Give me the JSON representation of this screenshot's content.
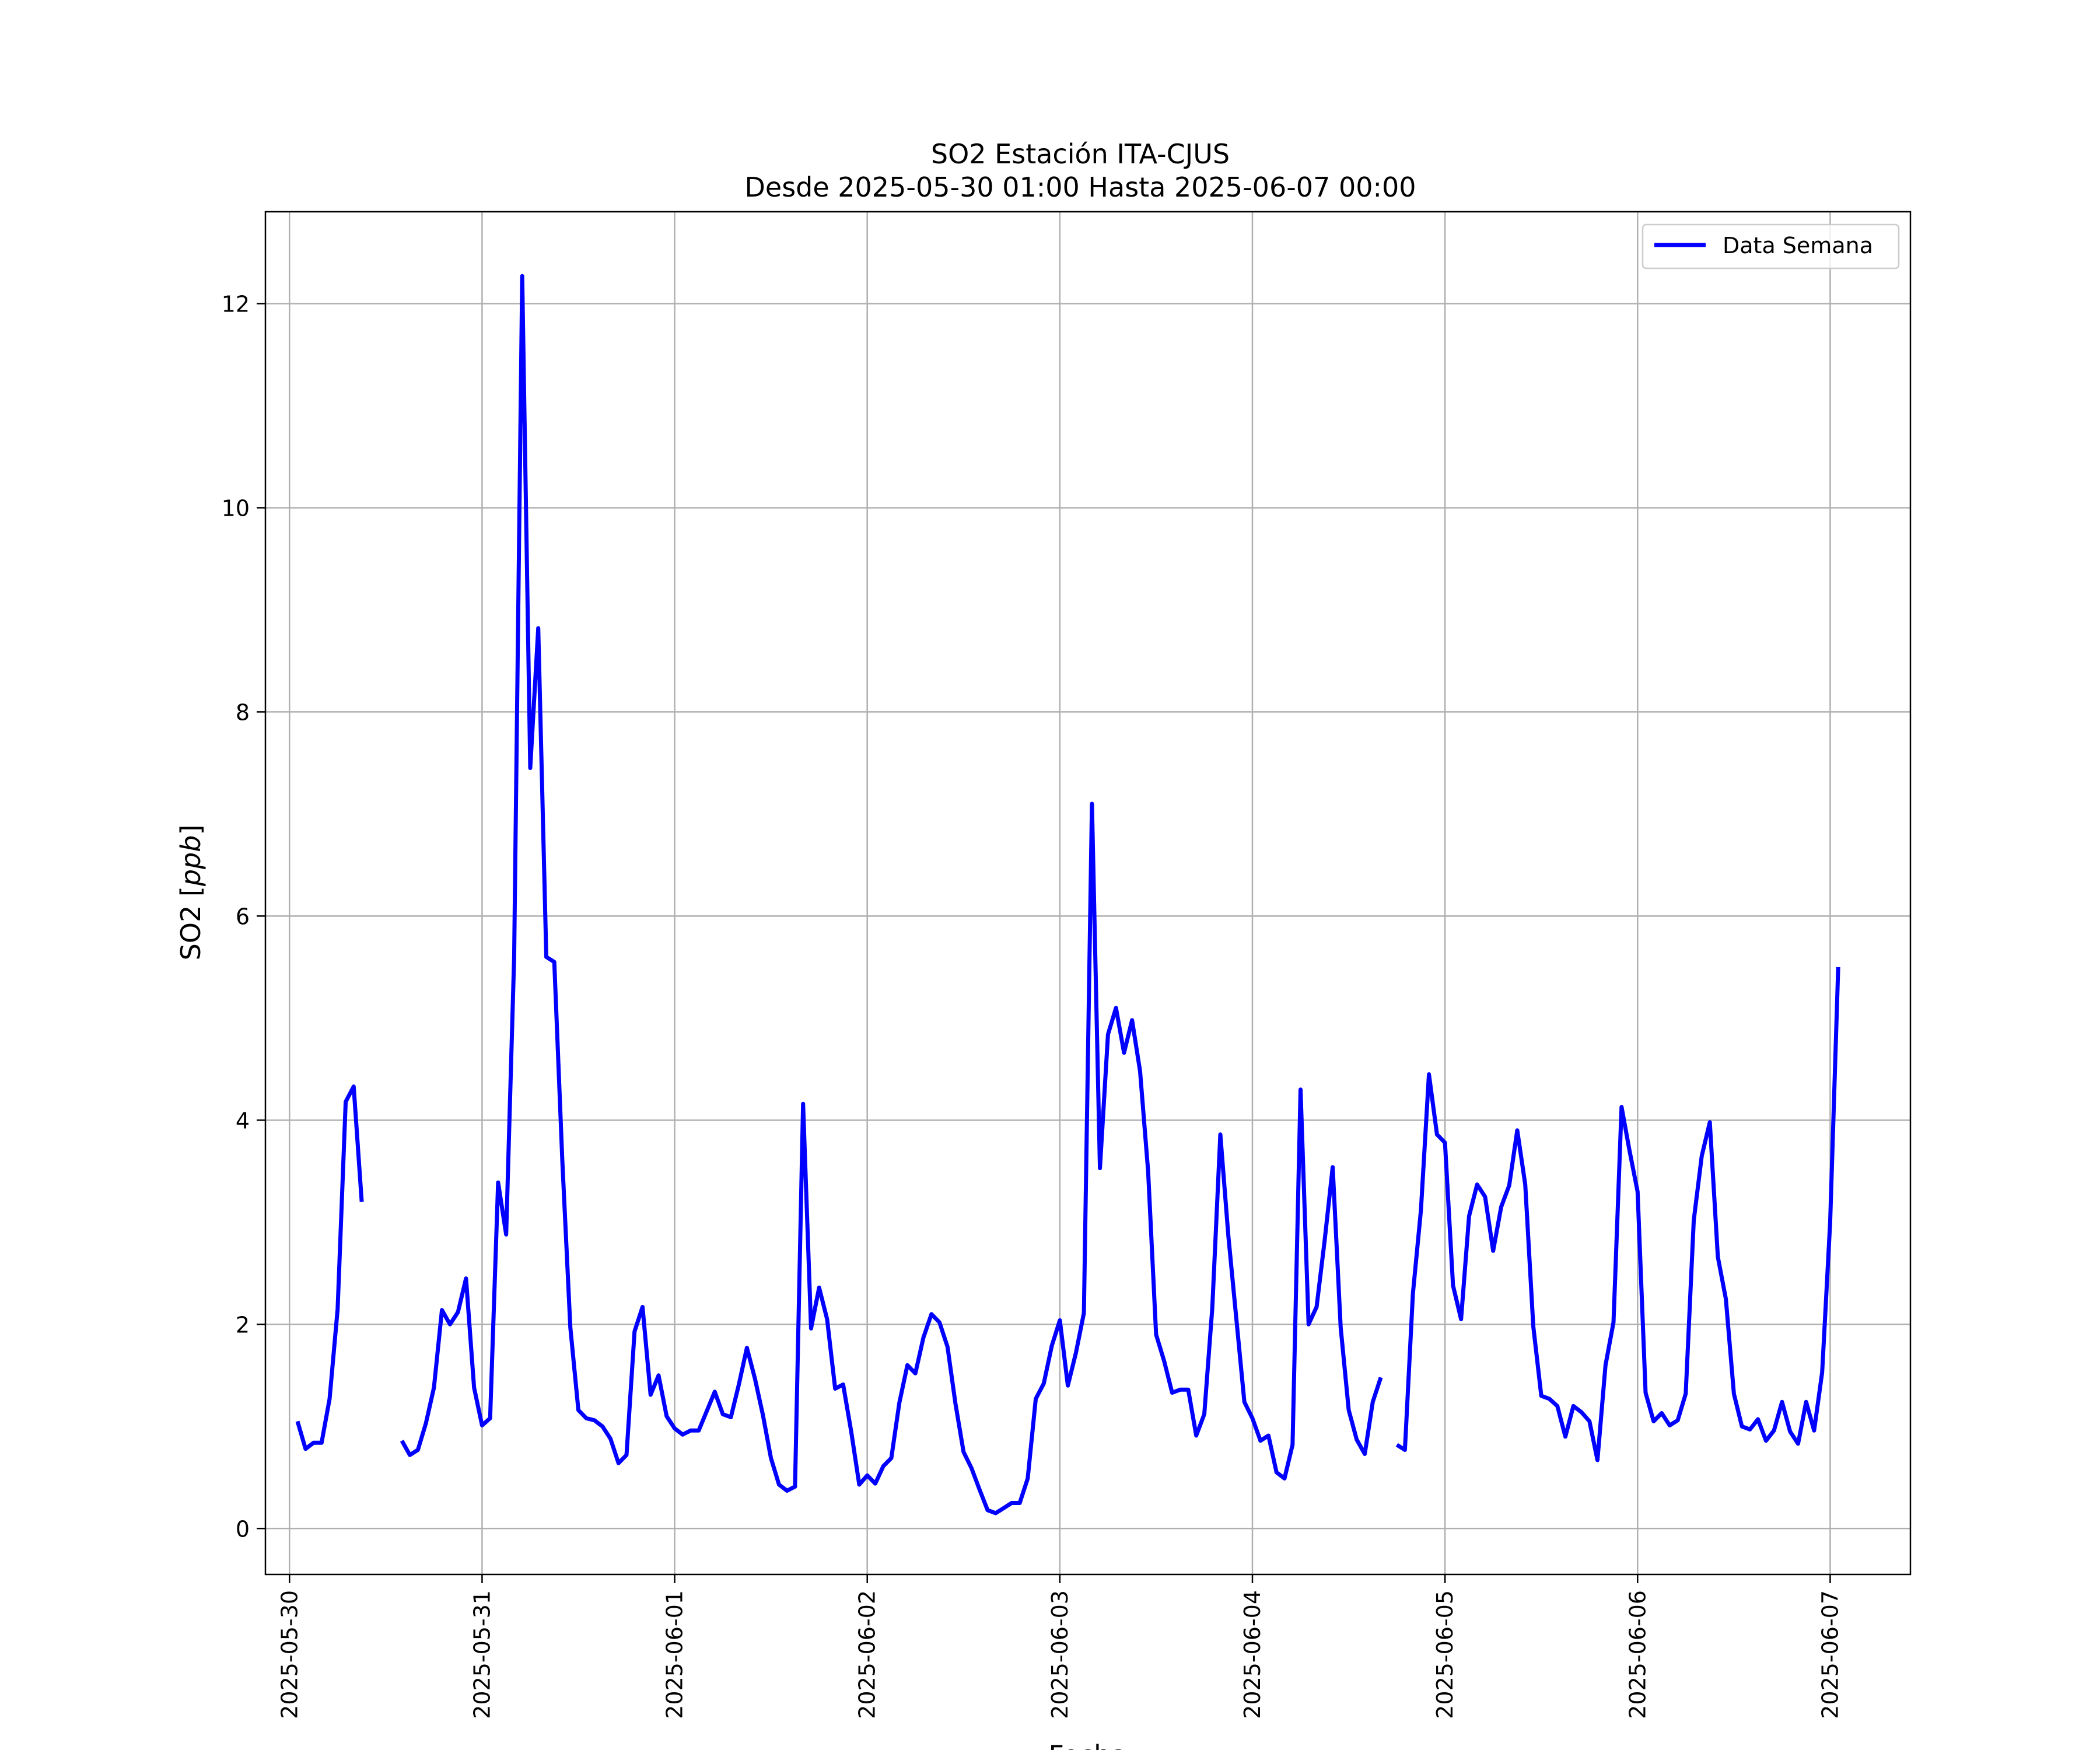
{
  "chart_data": {
    "type": "line",
    "title": "SO2 Estación ITA-CJUS",
    "subtitle": "Desde 2025-05-30 01:00 Hasta 2025-06-07 00:00",
    "xlabel": "Fecha",
    "ylabel": "SO2 [ppb]",
    "ylim": [
      -0.45,
      12.9
    ],
    "xlim": [
      "2025-05-29 21:00",
      "2025-06-07 10:00"
    ],
    "x_ticks": [
      "2025-05-30",
      "2025-05-31",
      "2025-06-01",
      "2025-06-02",
      "2025-06-03",
      "2025-06-04",
      "2025-06-05",
      "2025-06-06",
      "2025-06-07"
    ],
    "y_ticks": [
      0,
      2,
      4,
      6,
      8,
      10,
      12
    ],
    "grid": true,
    "legend_position": "upper right",
    "series": [
      {
        "name": "Data Semana",
        "color": "#0000ff",
        "start": "2025-05-30 01:00",
        "step_hours": 1,
        "values": [
          1.05,
          0.78,
          0.84,
          0.84,
          1.27,
          2.15,
          4.18,
          4.33,
          3.2,
          null,
          null,
          null,
          null,
          0.86,
          0.72,
          0.77,
          1.03,
          1.38,
          2.14,
          2.0,
          2.12,
          2.45,
          1.38,
          1.01,
          1.08,
          3.39,
          2.88,
          5.6,
          12.27,
          7.45,
          8.82,
          5.6,
          5.55,
          3.6,
          1.97,
          1.16,
          1.08,
          1.06,
          1.0,
          0.88,
          0.64,
          0.72,
          1.93,
          2.17,
          1.31,
          1.5,
          1.1,
          0.98,
          0.92,
          0.96,
          0.96,
          1.15,
          1.34,
          1.12,
          1.09,
          1.41,
          1.77,
          1.47,
          1.11,
          0.69,
          0.43,
          0.37,
          0.41,
          4.16,
          1.96,
          2.36,
          2.05,
          1.37,
          1.41,
          0.95,
          0.43,
          0.52,
          0.44,
          0.61,
          0.69,
          1.23,
          1.6,
          1.52,
          1.87,
          2.1,
          2.02,
          1.78,
          1.22,
          0.75,
          0.59,
          0.38,
          0.18,
          0.15,
          0.2,
          0.25,
          0.25,
          0.49,
          1.27,
          1.42,
          1.79,
          2.04,
          1.4,
          1.72,
          2.11,
          7.1,
          3.53,
          4.84,
          5.1,
          4.66,
          4.98,
          4.48,
          3.5,
          1.9,
          1.64,
          1.33,
          1.36,
          1.36,
          0.91,
          1.12,
          2.16,
          3.86,
          2.87,
          2.05,
          1.24,
          1.08,
          0.86,
          0.91,
          0.55,
          0.49,
          0.82,
          4.3,
          2.0,
          2.17,
          2.82,
          3.54,
          1.97,
          1.16,
          0.87,
          0.73,
          1.24,
          1.48,
          null,
          0.82,
          0.77,
          2.3,
          3.12,
          4.45,
          3.86,
          3.78,
          2.38,
          2.05,
          3.06,
          3.37,
          3.25,
          2.72,
          3.15,
          3.36,
          3.9,
          3.37,
          1.98,
          1.3,
          1.27,
          1.2,
          0.9,
          1.2,
          1.14,
          1.05,
          0.67,
          1.6,
          2.02,
          4.13,
          3.7,
          3.3,
          1.33,
          1.05,
          1.13,
          1.01,
          1.06,
          1.32,
          3.02,
          3.65,
          3.98,
          2.66,
          2.25,
          1.32,
          1.0,
          0.97,
          1.07,
          0.86,
          0.96,
          1.24,
          0.95,
          0.83,
          1.24,
          0.96,
          1.53,
          3.0,
          5.5
        ]
      }
    ]
  }
}
